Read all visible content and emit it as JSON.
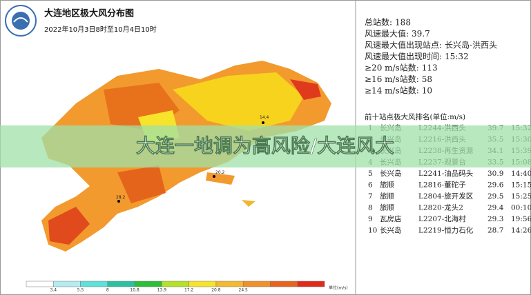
{
  "header": {
    "title": "大连地区极大风分布图",
    "subtitle": "2022年10月3日8时至10月4日10时"
  },
  "stats": [
    {
      "label": "总站数:",
      "value": 188
    },
    {
      "label": "风速最大值:",
      "value": 39.7
    },
    {
      "label": "风速最大值出现站点:",
      "value": "长兴岛-洪西头"
    },
    {
      "label": "风速最大值出现时间:",
      "value": "15:32"
    },
    {
      "label": "≥20 m/s站数:",
      "value": 113
    },
    {
      "label": "≥16 m/s站数:",
      "value": 58
    },
    {
      "label": "≥14 m/s站数:",
      "value": 10
    }
  ],
  "table": {
    "title": "前十站点极大风排名(单位:m/s)",
    "rows": [
      [
        1,
        "长兴岛",
        "L2244-洪西头",
        39.7,
        "15:32"
      ],
      [
        2,
        "长兴岛",
        "L2216-洪西头",
        35.5,
        "15:30"
      ],
      [
        3,
        "长兴岛",
        "L2238-再生资源",
        34.1,
        "15:39"
      ],
      [
        4,
        "长兴岛",
        "L2237-观景台",
        33.5,
        "15:08"
      ],
      [
        5,
        "长兴岛",
        "L2241-油品码头",
        30.9,
        "14:40"
      ],
      [
        6,
        "旅顺",
        "L2816-董砣子",
        29.6,
        "15:15"
      ],
      [
        7,
        "旅顺",
        "L2804-旅开发区",
        29.5,
        "15:25"
      ],
      [
        8,
        "旅顺",
        "L2820-龙头2",
        29.4,
        "00:10"
      ],
      [
        9,
        "瓦房店",
        "L2207-北海村",
        29.3,
        "19:56"
      ],
      [
        10,
        "长兴岛",
        "L2219-恒力石化",
        28.7,
        "14:26"
      ]
    ]
  },
  "legend": {
    "ticks": [
      3.4,
      5.5,
      8,
      10.8,
      13.9,
      17.2,
      20.8,
      24.5
    ],
    "unit": "单位(m/s)"
  },
  "map_labels": [
    14.4,
    20.2,
    28.2
  ],
  "banner": "大连一地调为高风险/大连风大"
}
